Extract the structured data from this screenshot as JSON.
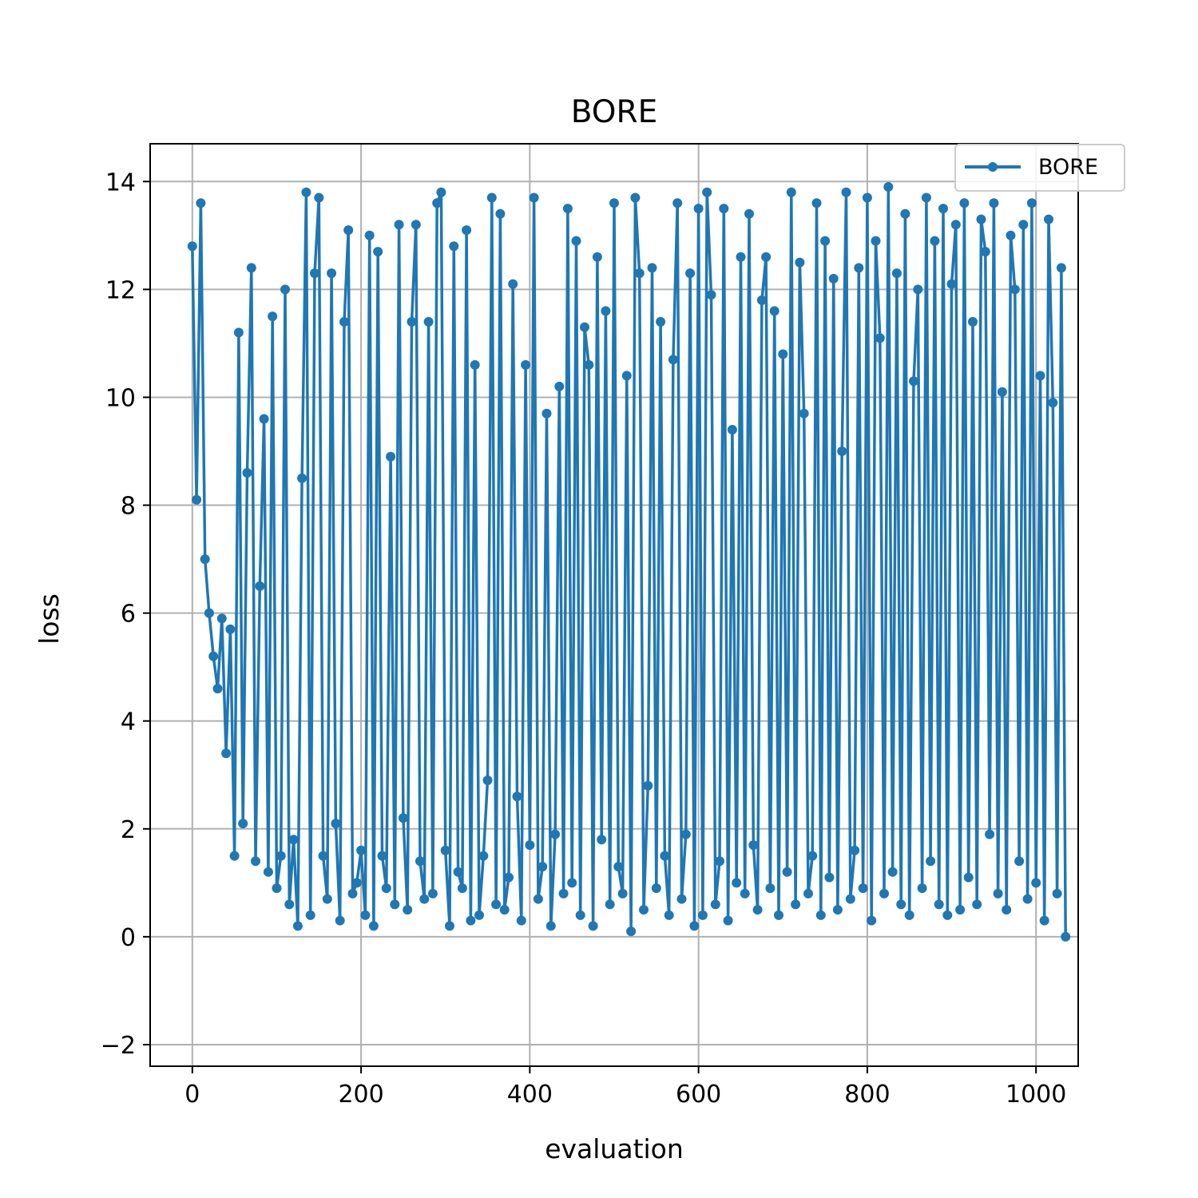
{
  "chart_data": {
    "type": "line",
    "title": "BORE",
    "xlabel": "evaluation",
    "ylabel": "loss",
    "xlim": [
      -50,
      1050
    ],
    "ylim": [
      -2.4,
      14.7
    ],
    "xticks": [
      0,
      200,
      400,
      600,
      800,
      1000
    ],
    "xtick_labels": [
      "0",
      "200",
      "400",
      "600",
      "800",
      "1000"
    ],
    "yticks": [
      -2,
      0,
      2,
      4,
      6,
      8,
      10,
      12,
      14
    ],
    "ytick_labels": [
      "−2",
      "0",
      "2",
      "4",
      "6",
      "8",
      "10",
      "12",
      "14"
    ],
    "grid": true,
    "legend": {
      "position": "top-right",
      "entries": [
        "BORE"
      ]
    },
    "series": [
      {
        "name": "BORE",
        "color": "#1f77b4",
        "marker": "circle",
        "x_start": 0,
        "x_step": 5,
        "values": [
          12.8,
          8.1,
          13.6,
          7.0,
          6.0,
          5.2,
          4.6,
          5.9,
          3.4,
          5.7,
          1.5,
          11.2,
          2.1,
          8.6,
          12.4,
          1.4,
          6.5,
          9.6,
          1.2,
          11.5,
          0.9,
          1.5,
          12.0,
          0.6,
          1.8,
          0.2,
          8.5,
          13.8,
          0.4,
          12.3,
          13.7,
          1.5,
          0.7,
          12.3,
          2.1,
          0.3,
          11.4,
          13.1,
          0.8,
          1.0,
          1.6,
          0.4,
          13.0,
          0.2,
          12.7,
          1.5,
          0.9,
          8.9,
          0.6,
          13.2,
          2.2,
          0.5,
          11.4,
          13.2,
          1.4,
          0.7,
          11.4,
          0.8,
          13.6,
          13.8,
          1.6,
          0.2,
          12.8,
          1.2,
          0.9,
          13.1,
          0.3,
          10.6,
          0.4,
          1.5,
          2.9,
          13.7,
          0.6,
          13.4,
          0.5,
          1.1,
          12.1,
          2.6,
          0.3,
          10.6,
          1.7,
          13.7,
          0.7,
          1.3,
          9.7,
          0.2,
          1.9,
          10.2,
          0.8,
          13.5,
          1.0,
          12.9,
          0.4,
          11.3,
          10.6,
          0.2,
          12.6,
          1.8,
          11.6,
          0.6,
          13.6,
          1.3,
          0.8,
          10.4,
          0.1,
          13.7,
          12.3,
          0.5,
          2.8,
          12.4,
          0.9,
          11.4,
          1.5,
          0.4,
          10.7,
          13.6,
          0.7,
          1.9,
          12.3,
          0.2,
          13.5,
          0.4,
          13.8,
          11.9,
          0.6,
          1.4,
          13.5,
          0.3,
          9.4,
          1.0,
          12.6,
          0.8,
          13.4,
          1.7,
          0.5,
          11.8,
          12.6,
          0.9,
          11.6,
          0.4,
          10.8,
          1.2,
          13.8,
          0.6,
          12.5,
          9.7,
          0.8,
          1.5,
          13.6,
          0.4,
          12.9,
          1.1,
          12.2,
          0.5,
          9.0,
          13.8,
          0.7,
          1.6,
          12.4,
          0.9,
          13.7,
          0.3,
          12.9,
          11.1,
          0.8,
          13.9,
          1.2,
          12.3,
          0.6,
          13.4,
          0.4,
          10.3,
          12.0,
          0.9,
          13.7,
          1.4,
          12.9,
          0.6,
          13.5,
          0.4,
          12.1,
          13.2,
          0.5,
          13.6,
          1.1,
          11.4,
          0.6,
          13.3,
          12.7,
          1.9,
          13.6,
          0.8,
          10.1,
          0.5,
          13.0,
          12.0,
          1.4,
          13.2,
          0.7,
          13.6,
          1.0,
          10.4,
          0.3,
          13.3,
          9.9,
          0.8,
          12.4,
          0.0
        ]
      }
    ]
  }
}
